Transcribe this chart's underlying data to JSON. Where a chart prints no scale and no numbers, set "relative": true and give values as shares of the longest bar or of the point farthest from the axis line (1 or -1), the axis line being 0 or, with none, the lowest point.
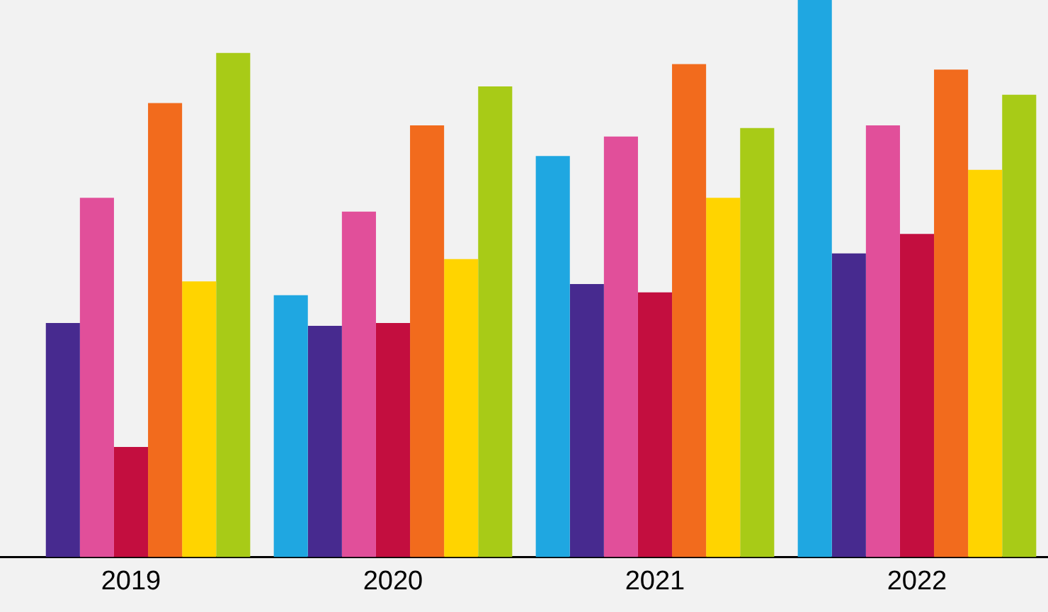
{
  "chart_data": {
    "type": "bar",
    "relative": true,
    "categories": [
      "2019",
      "2020",
      "2021",
      "2022"
    ],
    "series": [
      {
        "color": "#1fa7e1",
        "values": [
          null,
          0.47,
          0.72,
          1
        ]
      },
      {
        "color": "#472a8f",
        "values": [
          0.42,
          0.415,
          0.49,
          0.545
        ]
      },
      {
        "color": "#e14f9a",
        "values": [
          0.645,
          0.62,
          0.755,
          0.775
        ]
      },
      {
        "color": "#c30e3f",
        "values": [
          0.1975,
          0.42,
          0.475,
          0.58
        ]
      },
      {
        "color": "#f26b1d",
        "values": [
          0.815,
          0.775,
          0.885,
          0.875
        ]
      },
      {
        "color": "#ffd400",
        "values": [
          0.495,
          0.535,
          0.645,
          0.695
        ]
      },
      {
        "color": "#a8cb17",
        "values": [
          0.905,
          0.845,
          0.77,
          0.83
        ]
      }
    ]
  }
}
